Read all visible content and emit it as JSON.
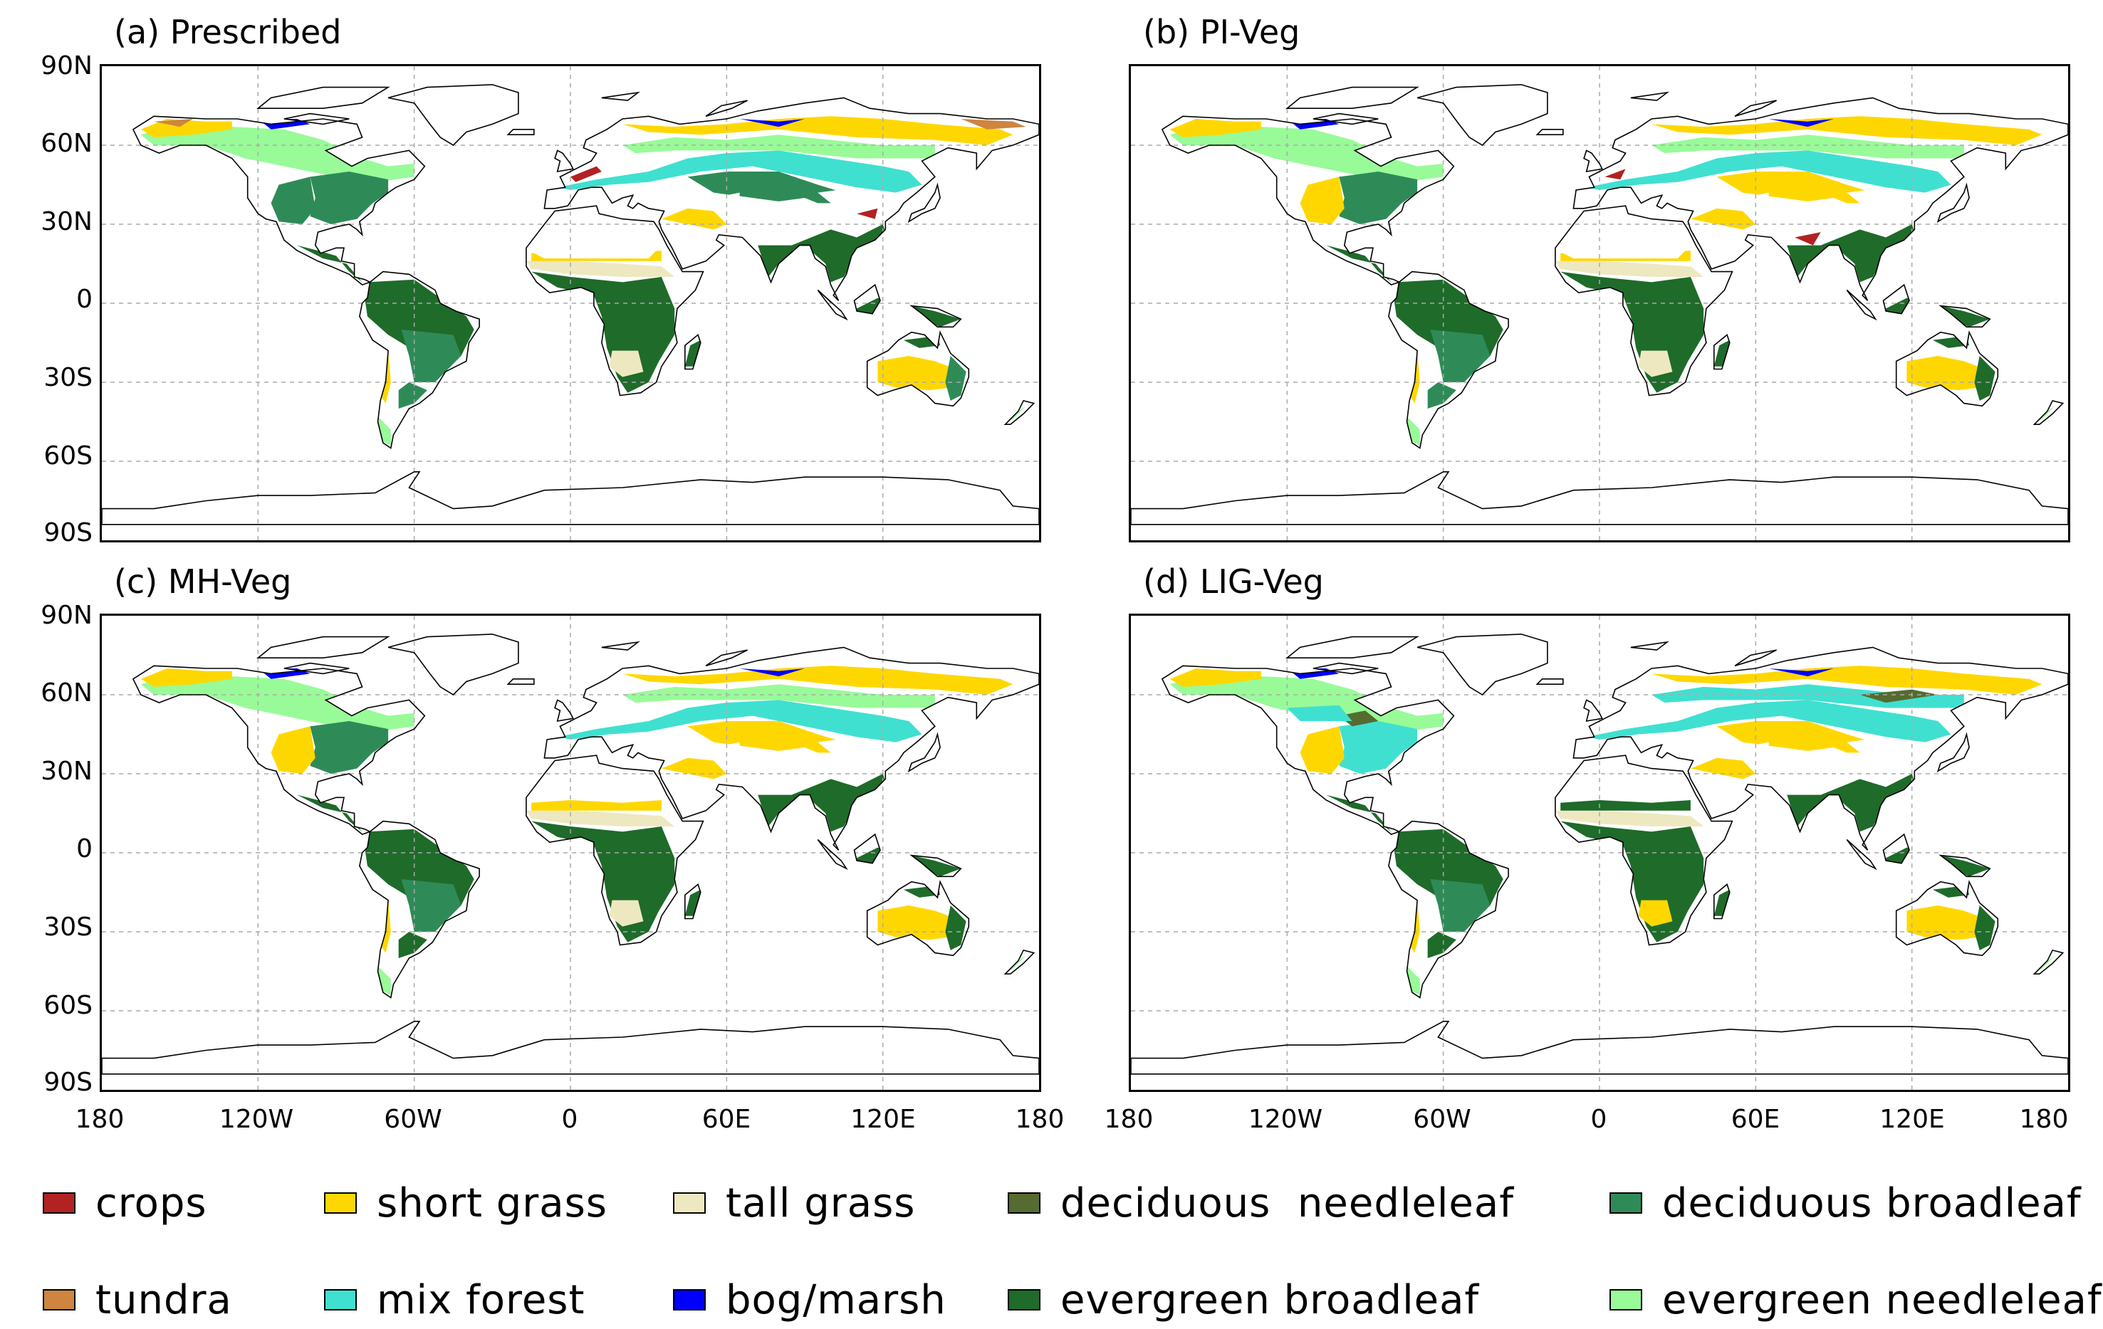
{
  "panels": [
    {
      "id": "a",
      "title": "(a) Prescribed"
    },
    {
      "id": "b",
      "title": "(b) PI-Veg"
    },
    {
      "id": "c",
      "title": "(c) MH-Veg"
    },
    {
      "id": "d",
      "title": "(d) LIG-Veg"
    }
  ],
  "latitude_ticks": [
    "90N",
    "60N",
    "30N",
    "0",
    "30S",
    "60S",
    "90S"
  ],
  "longitude_ticks": [
    "180",
    "120W",
    "60W",
    "0",
    "60E",
    "120E",
    "180"
  ],
  "legend": [
    {
      "label": "crops",
      "color": "#b22222"
    },
    {
      "label": "short grass",
      "color": "#ffd700"
    },
    {
      "label": "tall grass",
      "color": "#eee8c0"
    },
    {
      "label": "deciduous  needleleaf",
      "color": "#556b2f"
    },
    {
      "label": "deciduous broadleaf",
      "color": "#2e8b57"
    },
    {
      "label": "tundra",
      "color": "#cd853f"
    },
    {
      "label": "mix forest",
      "color": "#40e0d0"
    },
    {
      "label": "bog/marsh",
      "color": "#0000ff"
    },
    {
      "label": "evergreen broadleaf",
      "color": "#1e6b2a"
    },
    {
      "label": "evergreen needleleaf",
      "color": "#98fb98"
    }
  ]
}
